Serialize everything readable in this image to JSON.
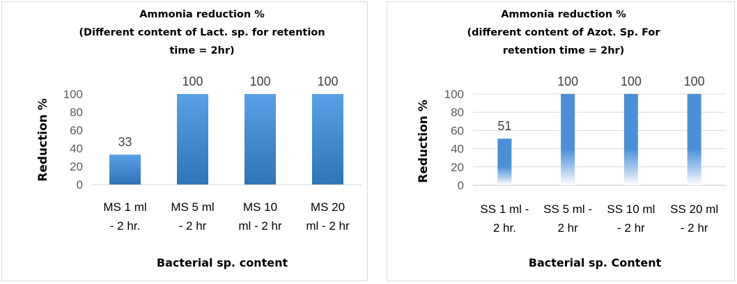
{
  "chart_data": [
    {
      "type": "bar",
      "title": [
        "Ammonia reduction %",
        "(Different content of Lact. sp. for retention",
        "time = 2hr)"
      ],
      "ylabel": "Reduction %",
      "xlabel": "Bacterial sp. content",
      "categories": [
        [
          "MS 1 ml",
          "- 2 hr."
        ],
        [
          "MS 5 ml",
          "- 2 hr"
        ],
        [
          "MS 10",
          "ml - 2 hr"
        ],
        [
          "MS 20",
          "ml - 2 hr"
        ]
      ],
      "values": [
        33,
        100,
        100,
        100
      ],
      "data_labels": [
        "33",
        "100",
        "100",
        "100"
      ],
      "yticks": [
        "0",
        "20",
        "40",
        "60",
        "80",
        "100"
      ],
      "ylim": [
        0,
        100
      ],
      "grid": false,
      "bar_color": "#2e75b6",
      "bar_color_light": "#5aa0e6"
    },
    {
      "type": "bar",
      "title": [
        "Ammonia reduction %",
        "(different content of Azot. Sp. For",
        "retention time = 2hr)"
      ],
      "ylabel": "Reduction %",
      "xlabel": "Bacterial sp. Content",
      "categories": [
        [
          "SS 1 ml -",
          "2 hr."
        ],
        [
          "SS 5 ml -",
          "2 hr"
        ],
        [
          "SS 10 ml",
          "- 2 hr"
        ],
        [
          "SS 20 ml",
          "- 2 hr"
        ]
      ],
      "values": [
        51,
        100,
        100,
        100
      ],
      "data_labels": [
        "51",
        "100",
        "100",
        "100"
      ],
      "yticks": [
        "0",
        "20",
        "40",
        "60",
        "80",
        "100"
      ],
      "ylim": [
        0,
        100
      ],
      "grid": true,
      "bar_color": "#4a90d9",
      "bar_color_light": "#ffffff"
    }
  ]
}
